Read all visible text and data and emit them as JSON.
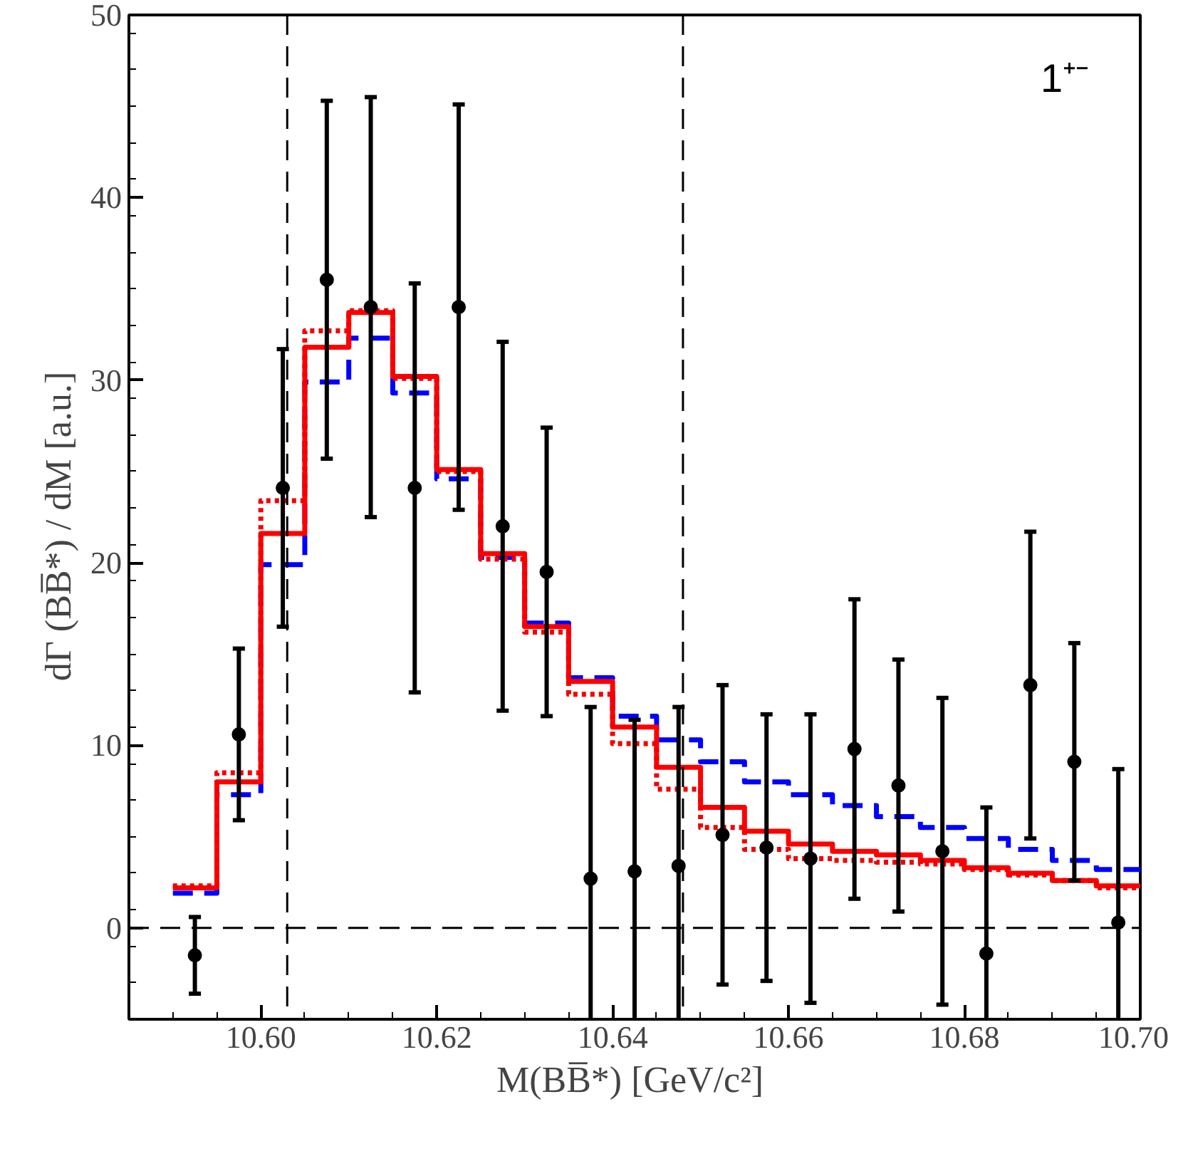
{
  "chart_data": {
    "type": "scatter",
    "xlabel": "M(BB̅*)  [GeV/c²]",
    "ylabel": "dΓ (BB̅*) / dM   [a.u.]",
    "annotations": [
      "1⁺⁻"
    ],
    "xlim": [
      10.585,
      10.7
    ],
    "ylim": [
      -5,
      50
    ],
    "xticks": [
      {
        "value": 10.6,
        "label": "10.60"
      },
      {
        "value": 10.62,
        "label": "10.62"
      },
      {
        "value": 10.64,
        "label": "10.64"
      },
      {
        "value": 10.66,
        "label": "10.66"
      },
      {
        "value": 10.68,
        "label": "10.68"
      },
      {
        "value": 10.7,
        "label": "10.70"
      }
    ],
    "yticks": [
      0,
      10,
      20,
      30,
      40,
      50
    ],
    "grid": false,
    "marker": "circle",
    "x": [
      10.5925,
      10.5975,
      10.6025,
      10.6075,
      10.6125,
      10.6175,
      10.6225,
      10.6275,
      10.6325,
      10.6375,
      10.6425,
      10.6475,
      10.6525,
      10.6575,
      10.6625,
      10.6675,
      10.6725,
      10.6775,
      10.6825,
      10.6875,
      10.6925,
      10.6975
    ],
    "bins": [
      10.59,
      10.595,
      10.6,
      10.605,
      10.61,
      10.615,
      10.62,
      10.625,
      10.63,
      10.635,
      10.64,
      10.645,
      10.65,
      10.655,
      10.66,
      10.665,
      10.67,
      10.675,
      10.68,
      10.685,
      10.69,
      10.695,
      10.7
    ],
    "series": [
      {
        "color": "#000000",
        "values": [
          -1.5,
          10.6,
          24.1,
          35.5,
          34.0,
          24.1,
          34.0,
          22.0,
          19.5,
          2.7,
          3.1,
          3.4,
          5.1,
          4.4,
          3.8,
          9.8,
          7.8,
          4.2,
          -1.4,
          13.3,
          9.1,
          0.3
        ],
        "errors": [
          2.1,
          4.7,
          7.6,
          9.8,
          11.5,
          11.2,
          11.1,
          10.1,
          7.9,
          9.4,
          8.3,
          8.7,
          8.2,
          7.3,
          7.9,
          8.2,
          6.9,
          8.4,
          8.0,
          8.4,
          6.5,
          8.4
        ]
      },
      {
        "type": "histogram",
        "color": "#0000ff",
        "line_style": "dashed",
        "values": [
          1.9,
          7.3,
          19.9,
          29.9,
          32.3,
          29.3,
          24.6,
          20.3,
          16.7,
          13.7,
          11.6,
          10.3,
          9.1,
          8.0,
          7.3,
          6.7,
          6.1,
          5.5,
          4.9,
          4.3,
          3.7,
          3.2
        ]
      },
      {
        "type": "histogram",
        "color": "#ff0000",
        "line_style": "solid",
        "values": [
          2.2,
          8.0,
          21.6,
          31.8,
          33.7,
          30.2,
          25.1,
          20.5,
          16.5,
          13.5,
          11.0,
          8.8,
          6.6,
          5.3,
          4.6,
          4.2,
          4.0,
          3.7,
          3.3,
          3.0,
          2.6,
          2.3
        ]
      },
      {
        "type": "histogram",
        "color": "#f40000",
        "line_style": "dotted",
        "values": [
          2.3,
          8.5,
          23.4,
          32.7,
          33.8,
          30.1,
          25.0,
          20.2,
          16.2,
          12.8,
          10.1,
          7.6,
          5.5,
          4.3,
          3.8,
          3.7,
          3.6,
          3.5,
          3.2,
          2.9,
          2.6,
          2.2
        ]
      }
    ],
    "ref_lines": [
      {
        "axis": "x",
        "value": 10.603,
        "line_style": "dashed",
        "color": "#000000"
      },
      {
        "axis": "x",
        "value": 10.648,
        "line_style": "dashed",
        "color": "#000000"
      },
      {
        "axis": "y",
        "value": 0,
        "line_style": "dashed",
        "color": "#000000"
      }
    ]
  }
}
